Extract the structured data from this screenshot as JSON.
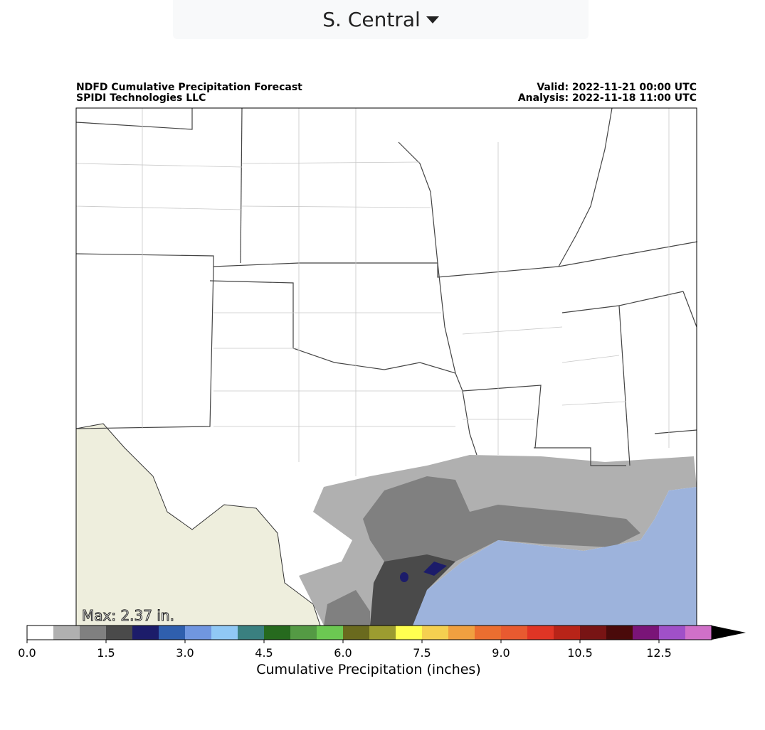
{
  "dropdown": {
    "label": "S. Central"
  },
  "header": {
    "title": "NDFD Cumulative Precipitation Forecast",
    "org": "SPIDI Technologies LLC",
    "valid": "Valid: 2022-11-21 00:00 UTC",
    "analysis": "Analysis: 2022-11-18 11:00 UTC"
  },
  "map": {
    "max_label": "Max: 2.37 in."
  },
  "colorbar": {
    "label": "Cumulative Precipitation (inches)",
    "bounds": [
      0,
      0.5,
      1,
      1.5,
      2,
      2.5,
      3,
      3.5,
      4,
      4.5,
      5,
      5.5,
      6,
      6.5,
      7,
      7.5,
      8,
      8.5,
      9,
      9.5,
      10,
      10.5,
      11,
      11.5,
      12.5,
      13.5,
      14.5
    ],
    "colors": [
      "#ffffff",
      "#b0b0b0",
      "#808080",
      "#4a4a4a",
      "#1c1c6a",
      "#2f5fae",
      "#7096e0",
      "#90c8f5",
      "#3a8080",
      "#266a1e",
      "#549a44",
      "#6cc852",
      "#6a6a1e",
      "#9c9c30",
      "#ffff50",
      "#f5d050",
      "#f0a040",
      "#eb6e30",
      "#e85a30",
      "#e03525",
      "#b82418",
      "#781414",
      "#4a0a0a",
      "#7a1478",
      "#a050c8",
      "#d070c8"
    ],
    "extend_color": "#000000",
    "ticks": [
      {
        "value": 0,
        "label": "0.0"
      },
      {
        "value": 1.5,
        "label": "1.5"
      },
      {
        "value": 3,
        "label": "3.0"
      },
      {
        "value": 4.5,
        "label": "4.5"
      },
      {
        "value": 6,
        "label": "6.0"
      },
      {
        "value": 7.5,
        "label": "7.5"
      },
      {
        "value": 9,
        "label": "9.0"
      },
      {
        "value": 10.5,
        "label": "10.5"
      },
      {
        "value": 12.5,
        "label": "12.5"
      }
    ]
  }
}
